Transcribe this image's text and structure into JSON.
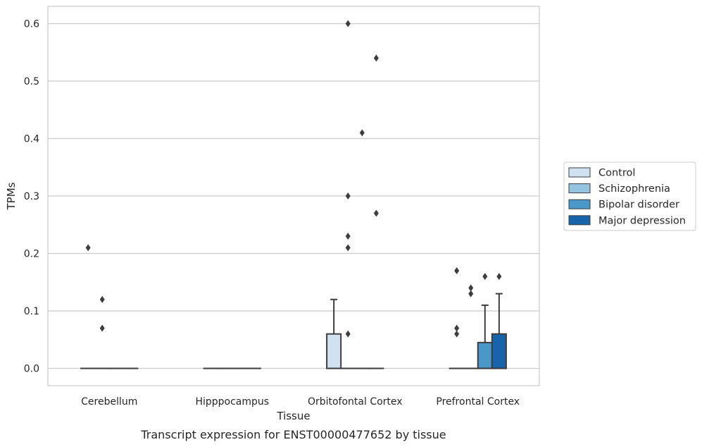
{
  "chart_data": {
    "type": "box",
    "title": "",
    "xlabel": "Tissue",
    "ylabel": "TPMs",
    "caption": "Transcript expression for ENST00000477652 by tissue",
    "ylim": [
      -0.03,
      0.63
    ],
    "yticks": [
      0.0,
      0.1,
      0.2,
      0.3,
      0.4,
      0.5,
      0.6
    ],
    "ytick_labels": [
      "0.0",
      "0.1",
      "0.2",
      "0.3",
      "0.4",
      "0.5",
      "0.6"
    ],
    "grid": "horizontal",
    "legend_position": "right",
    "categories": [
      "Cerebellum",
      "Hipppocampus",
      "Orbitofontal Cortex",
      "Prefrontal Cortex"
    ],
    "series": [
      {
        "name": "Control",
        "color": "#d0e1f2",
        "boxes": [
          {
            "q1": 0,
            "median": 0,
            "q3": 0,
            "whisker_low": 0,
            "whisker_high": 0,
            "outliers": [
              0.21
            ]
          },
          {
            "q1": 0,
            "median": 0,
            "q3": 0,
            "whisker_low": 0,
            "whisker_high": 0,
            "outliers": []
          },
          {
            "q1": 0,
            "median": 0,
            "q3": 0.06,
            "whisker_low": 0,
            "whisker_high": 0.12,
            "outliers": []
          },
          {
            "q1": 0,
            "median": 0,
            "q3": 0,
            "whisker_low": 0,
            "whisker_high": 0,
            "outliers": [
              0.06,
              0.07,
              0.17
            ]
          }
        ]
      },
      {
        "name": "Schizophrenia",
        "color": "#94c4df",
        "boxes": [
          {
            "q1": 0,
            "median": 0,
            "q3": 0,
            "whisker_low": 0,
            "whisker_high": 0,
            "outliers": [
              0.07,
              0.12
            ]
          },
          {
            "q1": 0,
            "median": 0,
            "q3": 0,
            "whisker_low": 0,
            "whisker_high": 0,
            "outliers": []
          },
          {
            "q1": 0,
            "median": 0,
            "q3": 0,
            "whisker_low": 0,
            "whisker_high": 0,
            "outliers": [
              0.06,
              0.21,
              0.23,
              0.3,
              0.6
            ]
          },
          {
            "q1": 0,
            "median": 0,
            "q3": 0,
            "whisker_low": 0,
            "whisker_high": 0,
            "outliers": [
              0.13,
              0.14
            ]
          }
        ]
      },
      {
        "name": "Bipolar disorder",
        "color": "#4a98c9",
        "boxes": [
          {
            "q1": 0,
            "median": 0,
            "q3": 0,
            "whisker_low": 0,
            "whisker_high": 0,
            "outliers": []
          },
          {
            "q1": 0,
            "median": 0,
            "q3": 0,
            "whisker_low": 0,
            "whisker_high": 0,
            "outliers": []
          },
          {
            "q1": 0,
            "median": 0,
            "q3": 0,
            "whisker_low": 0,
            "whisker_high": 0,
            "outliers": [
              0.41
            ]
          },
          {
            "q1": 0,
            "median": 0,
            "q3": 0.045,
            "whisker_low": 0,
            "whisker_high": 0.11,
            "outliers": [
              0.16
            ]
          }
        ]
      },
      {
        "name": "Major depression",
        "color": "#1764ab",
        "boxes": [
          {
            "q1": 0,
            "median": 0,
            "q3": 0,
            "whisker_low": 0,
            "whisker_high": 0,
            "outliers": []
          },
          {
            "q1": 0,
            "median": 0,
            "q3": 0,
            "whisker_low": 0,
            "whisker_high": 0,
            "outliers": []
          },
          {
            "q1": 0,
            "median": 0,
            "q3": 0,
            "whisker_low": 0,
            "whisker_high": 0,
            "outliers": [
              0.27,
              0.54
            ]
          },
          {
            "q1": 0,
            "median": 0,
            "q3": 0.06,
            "whisker_low": 0,
            "whisker_high": 0.13,
            "outliers": [
              0.16
            ]
          }
        ]
      }
    ]
  }
}
